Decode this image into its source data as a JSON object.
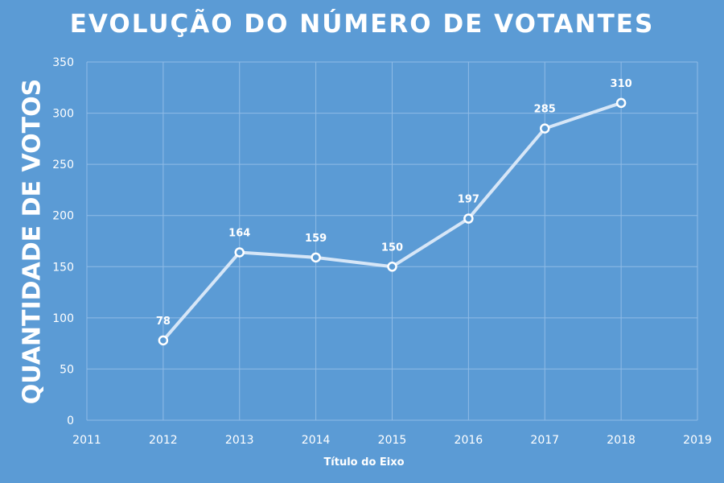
{
  "chart_data": {
    "type": "line",
    "title": "EVOLUÇÃO DO NÚMERO DE VOTANTES",
    "xlabel": "Título do Eixo",
    "ylabel": "QUANTIDADE DE VOTOS",
    "x": [
      2012,
      2013,
      2014,
      2015,
      2016,
      2017,
      2018
    ],
    "series": [
      {
        "values": [
          78,
          164,
          159,
          150,
          197,
          285,
          310
        ]
      }
    ],
    "data_labels": [
      "78",
      "164",
      "159",
      "150",
      "197",
      "285",
      "310"
    ],
    "xlim": [
      2011,
      2019
    ],
    "ylim": [
      0,
      350
    ],
    "x_ticks": [
      "2011",
      "2012",
      "2013",
      "2014",
      "2015",
      "2016",
      "2017",
      "2018",
      "2019"
    ],
    "y_ticks": [
      "0",
      "50",
      "100",
      "150",
      "200",
      "250",
      "300",
      "350"
    ],
    "grid": true,
    "legend": "none",
    "colors": {
      "background": "#5b9bd5",
      "line": "#d6e6f7",
      "marker_fill": "#5b9bd5",
      "marker_stroke": "#ffffff",
      "gridline": "#8fbbe6",
      "text": "#ffffff"
    }
  }
}
